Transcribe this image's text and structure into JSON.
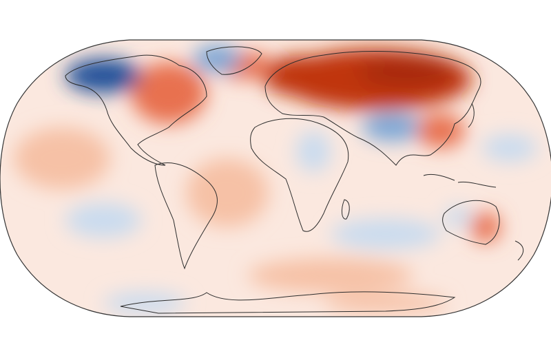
{
  "map": {
    "projection": "Robinson",
    "kind": "temperature-anomaly",
    "palette": {
      "strong_warm": "#c0360f",
      "warm": "#e8714f",
      "mild_warm": "#f6c1a6",
      "neutral": "#fbe8df",
      "mild_cool": "#c9dbef",
      "cool": "#7aa6d6",
      "strong_cool": "#22519a",
      "coastline": "#2b2b2b",
      "frame": "#333333"
    },
    "regions": [
      {
        "name": "siberia",
        "anomaly": "strong-warm"
      },
      {
        "name": "scandinavia-europe-north",
        "anomaly": "strong-warm"
      },
      {
        "name": "eastern-canada",
        "anomaly": "warm"
      },
      {
        "name": "alaska-western-canada",
        "anomaly": "strong-cool"
      },
      {
        "name": "greenland",
        "anomaly": "cool"
      },
      {
        "name": "central-asia-himalaya",
        "anomaly": "cool"
      },
      {
        "name": "east-africa",
        "anomaly": "cool"
      },
      {
        "name": "southern-indian-ocean",
        "anomaly": "cool"
      },
      {
        "name": "south-pacific",
        "anomaly": "cool"
      },
      {
        "name": "eastern-australia",
        "anomaly": "warm"
      }
    ]
  }
}
